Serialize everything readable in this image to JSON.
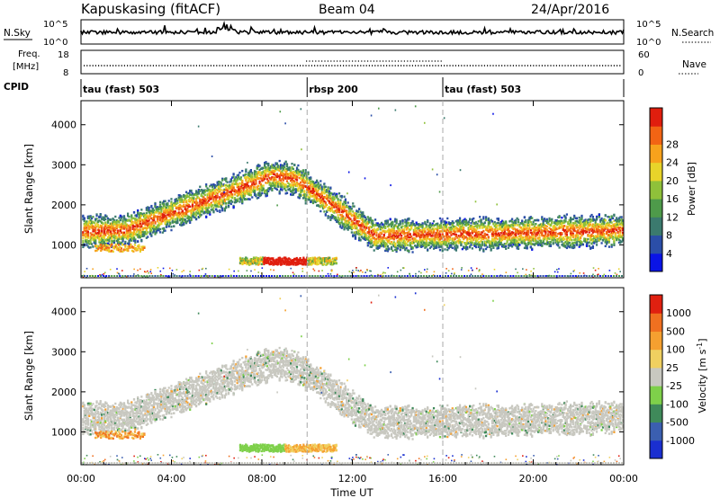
{
  "header": {
    "site": "Kapuskasing (fitACF)",
    "beam": "Beam 04",
    "date": "24/Apr/2016"
  },
  "noise_panel": {
    "left_label": "N.Sky",
    "right_label": "N.Search",
    "left_ticks": [
      "10^5",
      "10^0"
    ],
    "right_ticks": [
      "10^5",
      "10^0"
    ]
  },
  "freq_panel": {
    "left_label_1": "Freq.",
    "left_label_2": "[MHz]",
    "right_label": "Nave",
    "left_ticks": [
      "18",
      "8"
    ],
    "right_ticks": [
      "60",
      "0"
    ]
  },
  "cpid_panel": {
    "label": "CPID",
    "segments": [
      {
        "name": "tau (fast) 503",
        "start_hour": 0,
        "end_hour": 10
      },
      {
        "name": "rbsp 200",
        "start_hour": 10,
        "end_hour": 16
      },
      {
        "name": "tau (fast) 503",
        "start_hour": 16,
        "end_hour": 24
      }
    ]
  },
  "chart_data": [
    {
      "type": "heatmap",
      "name": "power",
      "ylabel": "Slant Range [km]",
      "ylim": [
        180,
        4600
      ],
      "yticks": [
        1000,
        2000,
        3000,
        4000
      ],
      "xlim": [
        0,
        24
      ],
      "colorbar": {
        "label": "Power [dB]",
        "range": [
          0,
          32
        ],
        "ticks": [
          "4",
          "8",
          "12",
          "16",
          "20",
          "24",
          "28"
        ],
        "colors": [
          "#0a14e6",
          "#2b4ea8",
          "#3b7a6e",
          "#4e9a4a",
          "#8fc13a",
          "#e8d42a",
          "#f7a21c",
          "#f26414",
          "#e01e0e"
        ]
      }
    },
    {
      "type": "heatmap",
      "name": "velocity",
      "ylabel": "Slant Range [km]",
      "ylim": [
        180,
        4600
      ],
      "yticks": [
        1000,
        2000,
        3000,
        4000
      ],
      "xlim": [
        0,
        24
      ],
      "colorbar": {
        "label": "Velocity [m s^-1]",
        "ticks": [
          "1000",
          "500",
          "100",
          "25",
          "-25",
          "-100",
          "-500",
          "-1000"
        ],
        "colors": [
          "#1a2fd0",
          "#3b5fb0",
          "#3f8a5a",
          "#7ed04a",
          "#c8c8c0",
          "#f0d060",
          "#f5a030",
          "#f07020",
          "#e02010"
        ]
      }
    }
  ],
  "x_axis": {
    "ticks": [
      "00:00",
      "04:00",
      "08:00",
      "12:00",
      "16:00",
      "20:00",
      "00:00"
    ],
    "label": "Time UT"
  }
}
